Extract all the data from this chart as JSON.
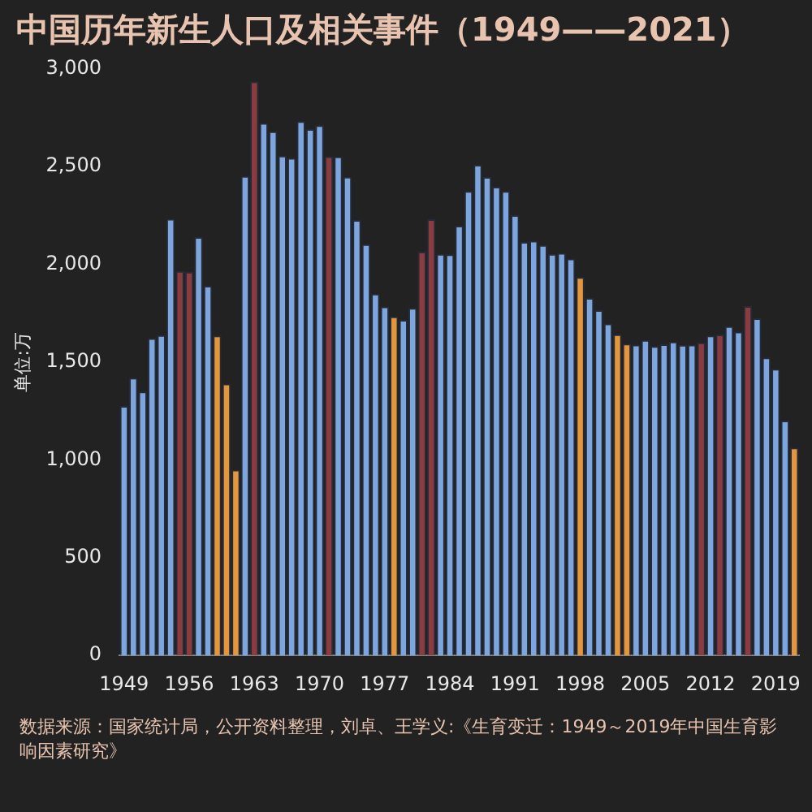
{
  "chart_data": {
    "type": "bar",
    "title": "中国历年新生人口及相关事件（1949——2021）",
    "ylabel": "单位:万",
    "annotations": [
      "数据来源：国家统计局，公开资料整理，刘卓、王学义:《生育变迁：1949～2019年中国生育影响因素研究》"
    ],
    "categories": [
      "1949",
      null,
      null,
      null,
      null,
      null,
      null,
      "1956",
      null,
      null,
      null,
      null,
      null,
      null,
      "1963",
      null,
      null,
      null,
      null,
      null,
      null,
      "1970",
      null,
      null,
      null,
      null,
      null,
      null,
      "1977",
      null,
      null,
      null,
      null,
      null,
      null,
      "1984",
      null,
      null,
      null,
      null,
      null,
      null,
      "1991",
      null,
      null,
      null,
      null,
      null,
      null,
      "1998",
      null,
      null,
      null,
      null,
      null,
      null,
      "2005",
      null,
      null,
      null,
      null,
      null,
      null,
      "2012",
      null,
      null,
      null,
      null,
      null,
      null,
      "2019",
      null,
      null
    ],
    "values": [
      1275,
      1419,
      1349,
      1622,
      1637,
      2232,
      1965,
      1961,
      2138,
      1889,
      1635,
      1389,
      949,
      2451,
      2934,
      2721,
      2679,
      2554,
      2543,
      2731,
      2690,
      2710,
      2551,
      2550,
      2447,
      2226,
      2102,
      1849,
      1783,
      1733,
      1715,
      1776,
      2064,
      2230,
      2052,
      2050,
      2196,
      2374,
      2508,
      2445,
      2396,
      2374,
      2250,
      2113,
      2120,
      2098,
      2052,
      2057,
      2028,
      1934,
      1827,
      1765,
      1696,
      1641,
      1594,
      1588,
      1612,
      1581,
      1591,
      1604,
      1587,
      1588,
      1600,
      1635,
      1640,
      1683,
      1655,
      1786,
      1723,
      1523,
      1465,
      1200,
      1062
    ],
    "colors": [
      "#7da5de",
      "#7da5de",
      "#7da5de",
      "#7da5de",
      "#7da5de",
      "#7da5de",
      "#8b3c40",
      "#8b3c40",
      "#7da5de",
      "#7da5de",
      "#e3963e",
      "#e3963e",
      "#e3963e",
      "#7da5de",
      "#8b3c40",
      "#7da5de",
      "#7da5de",
      "#7da5de",
      "#7da5de",
      "#7da5de",
      "#7da5de",
      "#7da5de",
      "#8b3c40",
      "#7da5de",
      "#7da5de",
      "#7da5de",
      "#7da5de",
      "#7da5de",
      "#7da5de",
      "#e3963e",
      "#7da5de",
      "#7da5de",
      "#8b3c40",
      "#8b3c40",
      "#7da5de",
      "#7da5de",
      "#7da5de",
      "#7da5de",
      "#7da5de",
      "#7da5de",
      "#7da5de",
      "#7da5de",
      "#7da5de",
      "#7da5de",
      "#7da5de",
      "#7da5de",
      "#7da5de",
      "#7da5de",
      "#7da5de",
      "#e3963e",
      "#7da5de",
      "#7da5de",
      "#7da5de",
      "#e3963e",
      "#e3963e",
      "#7da5de",
      "#7da5de",
      "#7da5de",
      "#7da5de",
      "#7da5de",
      "#7da5de",
      "#7da5de",
      "#8b3c40",
      "#7da5de",
      "#8b3c40",
      "#7da5de",
      "#7da5de",
      "#8b3c40",
      "#7da5de",
      "#7da5de",
      "#7da5de",
      "#7da5de",
      "#e3963e"
    ],
    "ylim": [
      0,
      3000
    ],
    "yticks": [
      0,
      {
        "value": 500,
        "label": "500"
      },
      {
        "value": 1000,
        "label": "1,000"
      },
      {
        "value": 1500,
        "label": "1,500"
      },
      {
        "value": 2000,
        "label": "2,000"
      },
      {
        "value": 2500,
        "label": "2,500"
      },
      {
        "value": 3000,
        "label": "3,000"
      }
    ],
    "grid": false
  }
}
